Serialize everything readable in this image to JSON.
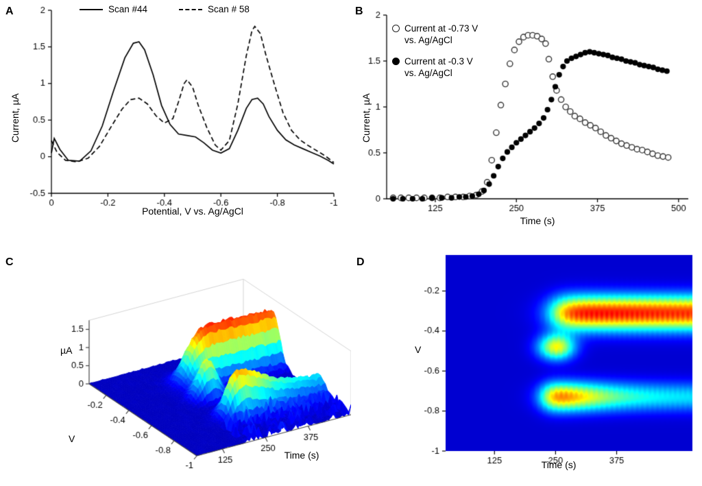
{
  "figure": {
    "background": "#ffffff",
    "accent_colormap": "jet"
  },
  "panels": {
    "a": {
      "letter": "A",
      "xlabel": "Potential, V vs. Ag/AgCl",
      "ylabel": "Current, µA",
      "legend": [
        {
          "style": "solid",
          "label": "Scan #44"
        },
        {
          "style": "dashed",
          "label": "Scan # 58"
        }
      ]
    },
    "b": {
      "letter": "B",
      "xlabel": "Time (s)",
      "ylabel": "Current, µA",
      "legend": [
        {
          "marker": "open",
          "label": "Current at -0.73 V vs. Ag/AgCl"
        },
        {
          "marker": "filled",
          "label": "Current at -0.3 V vs. Ag/AgCl"
        }
      ]
    },
    "c": {
      "letter": "C",
      "zlabel": "µA",
      "xlabel": "V",
      "ylabel": "Time (s)"
    },
    "d": {
      "letter": "D",
      "xlabel": "Time (s)",
      "ylabel": "V"
    }
  },
  "chart_data": [
    {
      "type": "line",
      "panel": "A",
      "xlabel": "Potential, V vs. Ag/AgCl",
      "ylabel": "Current, µA",
      "xlim": [
        0,
        -1
      ],
      "ylim": [
        -0.5,
        2
      ],
      "xticks": [
        0,
        -0.2,
        -0.4,
        -0.6,
        -0.8,
        -1
      ],
      "yticks": [
        -0.5,
        0,
        0.5,
        1,
        1.5,
        2
      ],
      "series": [
        {
          "name": "Scan #44",
          "style": "solid",
          "color": "#000000",
          "points": [
            [
              0,
              0.05
            ],
            [
              -0.01,
              0.25
            ],
            [
              -0.03,
              0.1
            ],
            [
              -0.06,
              -0.05
            ],
            [
              -0.1,
              -0.06
            ],
            [
              -0.14,
              0.08
            ],
            [
              -0.18,
              0.42
            ],
            [
              -0.22,
              0.9
            ],
            [
              -0.26,
              1.35
            ],
            [
              -0.29,
              1.55
            ],
            [
              -0.31,
              1.57
            ],
            [
              -0.33,
              1.46
            ],
            [
              -0.36,
              1.12
            ],
            [
              -0.39,
              0.7
            ],
            [
              -0.42,
              0.44
            ],
            [
              -0.45,
              0.31
            ],
            [
              -0.48,
              0.29
            ],
            [
              -0.51,
              0.27
            ],
            [
              -0.54,
              0.19
            ],
            [
              -0.57,
              0.09
            ],
            [
              -0.6,
              0.05
            ],
            [
              -0.63,
              0.11
            ],
            [
              -0.66,
              0.36
            ],
            [
              -0.69,
              0.66
            ],
            [
              -0.71,
              0.78
            ],
            [
              -0.73,
              0.8
            ],
            [
              -0.75,
              0.72
            ],
            [
              -0.77,
              0.55
            ],
            [
              -0.8,
              0.36
            ],
            [
              -0.83,
              0.23
            ],
            [
              -0.86,
              0.16
            ],
            [
              -0.89,
              0.11
            ],
            [
              -0.92,
              0.06
            ],
            [
              -0.95,
              0.01
            ],
            [
              -0.98,
              -0.05
            ],
            [
              -1,
              -0.1
            ]
          ]
        },
        {
          "name": "Scan # 58",
          "style": "dashed",
          "color": "#000000",
          "points": [
            [
              0,
              0.22
            ],
            [
              -0.02,
              0.06
            ],
            [
              -0.05,
              -0.05
            ],
            [
              -0.09,
              -0.07
            ],
            [
              -0.13,
              -0.02
            ],
            [
              -0.17,
              0.14
            ],
            [
              -0.21,
              0.4
            ],
            [
              -0.25,
              0.65
            ],
            [
              -0.28,
              0.78
            ],
            [
              -0.31,
              0.8
            ],
            [
              -0.34,
              0.72
            ],
            [
              -0.37,
              0.56
            ],
            [
              -0.4,
              0.46
            ],
            [
              -0.43,
              0.52
            ],
            [
              -0.45,
              0.75
            ],
            [
              -0.47,
              1.0
            ],
            [
              -0.48,
              1.05
            ],
            [
              -0.5,
              0.95
            ],
            [
              -0.52,
              0.7
            ],
            [
              -0.55,
              0.4
            ],
            [
              -0.58,
              0.16
            ],
            [
              -0.6,
              0.09
            ],
            [
              -0.63,
              0.22
            ],
            [
              -0.66,
              0.72
            ],
            [
              -0.69,
              1.38
            ],
            [
              -0.71,
              1.72
            ],
            [
              -0.72,
              1.78
            ],
            [
              -0.74,
              1.68
            ],
            [
              -0.76,
              1.38
            ],
            [
              -0.79,
              0.98
            ],
            [
              -0.82,
              0.6
            ],
            [
              -0.85,
              0.36
            ],
            [
              -0.88,
              0.23
            ],
            [
              -0.91,
              0.15
            ],
            [
              -0.94,
              0.08
            ],
            [
              -0.97,
              0.01
            ],
            [
              -1,
              -0.08
            ]
          ]
        }
      ]
    },
    {
      "type": "scatter",
      "panel": "B",
      "xlabel": "Time (s)",
      "ylabel": "Current, µA",
      "xlim": [
        50,
        515
      ],
      "ylim": [
        0,
        2
      ],
      "xticks": [
        125,
        250,
        375,
        500
      ],
      "yticks": [
        0,
        0.5,
        1,
        1.5,
        2
      ],
      "series": [
        {
          "name": "Current at -0.73 V vs. Ag/AgCl",
          "marker": "open",
          "points": [
            [
              60,
              0.01
            ],
            [
              72,
              0.01
            ],
            [
              84,
              0.01
            ],
            [
              96,
              0.01
            ],
            [
              108,
              0.01
            ],
            [
              120,
              0.01
            ],
            [
              132,
              0.01
            ],
            [
              144,
              0.02
            ],
            [
              156,
              0.02
            ],
            [
              168,
              0.02
            ],
            [
              178,
              0.03
            ],
            [
              188,
              0.04
            ],
            [
              197,
              0.08
            ],
            [
              205,
              0.18
            ],
            [
              212,
              0.42
            ],
            [
              219,
              0.72
            ],
            [
              226,
              1.02
            ],
            [
              233,
              1.25
            ],
            [
              240,
              1.47
            ],
            [
              247,
              1.62
            ],
            [
              254,
              1.71
            ],
            [
              261,
              1.76
            ],
            [
              268,
              1.78
            ],
            [
              275,
              1.78
            ],
            [
              282,
              1.77
            ],
            [
              289,
              1.74
            ],
            [
              295,
              1.69
            ],
            [
              300,
              1.52
            ],
            [
              306,
              1.33
            ],
            [
              312,
              1.18
            ],
            [
              319,
              1.08
            ],
            [
              326,
              1.0
            ],
            [
              333,
              0.95
            ],
            [
              340,
              0.9
            ],
            [
              348,
              0.87
            ],
            [
              356,
              0.83
            ],
            [
              364,
              0.8
            ],
            [
              372,
              0.77
            ],
            [
              380,
              0.73
            ],
            [
              388,
              0.69
            ],
            [
              396,
              0.66
            ],
            [
              404,
              0.63
            ],
            [
              412,
              0.6
            ],
            [
              420,
              0.58
            ],
            [
              428,
              0.56
            ],
            [
              436,
              0.54
            ],
            [
              444,
              0.53
            ],
            [
              452,
              0.51
            ],
            [
              460,
              0.49
            ],
            [
              468,
              0.47
            ],
            [
              476,
              0.46
            ],
            [
              484,
              0.45
            ]
          ]
        },
        {
          "name": "Current at -0.3 V vs. Ag/AgCl",
          "marker": "filled",
          "points": [
            [
              60,
              0.0
            ],
            [
              75,
              0.0
            ],
            [
              90,
              0.0
            ],
            [
              105,
              0.0
            ],
            [
              120,
              0.01
            ],
            [
              135,
              0.01
            ],
            [
              150,
              0.01
            ],
            [
              162,
              0.02
            ],
            [
              172,
              0.02
            ],
            [
              182,
              0.03
            ],
            [
              192,
              0.05
            ],
            [
              200,
              0.09
            ],
            [
              208,
              0.16
            ],
            [
              215,
              0.25
            ],
            [
              222,
              0.35
            ],
            [
              229,
              0.44
            ],
            [
              236,
              0.51
            ],
            [
              243,
              0.56
            ],
            [
              250,
              0.61
            ],
            [
              257,
              0.65
            ],
            [
              264,
              0.69
            ],
            [
              271,
              0.73
            ],
            [
              278,
              0.77
            ],
            [
              285,
              0.82
            ],
            [
              292,
              0.88
            ],
            [
              298,
              0.97
            ],
            [
              304,
              1.08
            ],
            [
              310,
              1.22
            ],
            [
              316,
              1.35
            ],
            [
              322,
              1.44
            ],
            [
              328,
              1.5
            ],
            [
              335,
              1.53
            ],
            [
              342,
              1.55
            ],
            [
              349,
              1.57
            ],
            [
              356,
              1.59
            ],
            [
              363,
              1.6
            ],
            [
              370,
              1.59
            ],
            [
              377,
              1.58
            ],
            [
              384,
              1.57
            ],
            [
              391,
              1.56
            ],
            [
              398,
              1.54
            ],
            [
              405,
              1.53
            ],
            [
              412,
              1.52
            ],
            [
              419,
              1.5
            ],
            [
              426,
              1.49
            ],
            [
              433,
              1.48
            ],
            [
              440,
              1.46
            ],
            [
              447,
              1.45
            ],
            [
              454,
              1.44
            ],
            [
              461,
              1.43
            ],
            [
              468,
              1.41
            ],
            [
              475,
              1.4
            ],
            [
              482,
              1.39
            ]
          ]
        }
      ]
    },
    {
      "type": "surface3d",
      "panel": "C",
      "xlabel": "V",
      "ylabel": "Time (s)",
      "zlabel": "µA",
      "v_range": [
        -0.05,
        -1
      ],
      "t_range": [
        50,
        500
      ],
      "z_range": [
        0,
        1.8
      ],
      "v_ticks": [
        -0.2,
        -0.4,
        -0.6,
        -0.8,
        -1
      ],
      "t_ticks": [
        125,
        250,
        375
      ],
      "z_ticks": [
        0,
        0.5,
        1,
        1.5
      ],
      "colormap": "jet",
      "model": {
        "peaks": [
          {
            "kind": "sustain",
            "amp": 1.55,
            "v_center": -0.31,
            "v_sigma": 0.06,
            "t_on": 248,
            "t_on_width": 16,
            "sag": 0.07,
            "t_off": 420,
            "t_off_width": 60
          },
          {
            "kind": "transient",
            "amp": 1.05,
            "v_center": -0.48,
            "v_sigma": 0.045,
            "t_center": 252,
            "t_sigma": 26
          },
          {
            "kind": "rise_decay",
            "amp": 1.8,
            "v_center": -0.73,
            "v_sigma": 0.05,
            "t_on": 228,
            "t_on_width": 12,
            "decay_frac": 0.72,
            "t_off": 300,
            "t_off_width": 55
          }
        ]
      }
    },
    {
      "type": "heatmap",
      "panel": "D",
      "xlabel": "Time (s)",
      "ylabel": "V",
      "t_range": [
        25,
        530
      ],
      "v_range": [
        -0.02,
        -1
      ],
      "x_ticks": [
        125,
        250,
        375
      ],
      "y_ticks": [
        -0.2,
        -0.4,
        -0.6,
        -0.8,
        -1
      ],
      "z_range": [
        0,
        1.8
      ],
      "colormap": "jet"
    }
  ]
}
